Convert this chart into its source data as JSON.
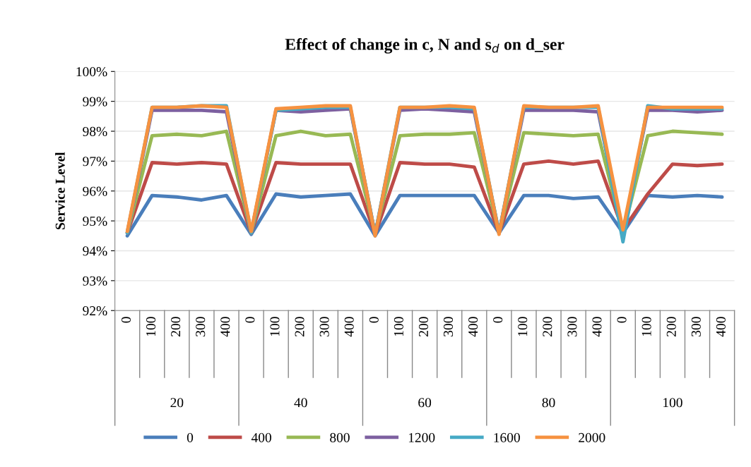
{
  "chart_data": {
    "type": "line",
    "title": "Effect of change in c, N and s$_{d}$ on d_ser",
    "ylabel": "Service Level",
    "categories": [
      "0",
      "100",
      "200",
      "300",
      "400",
      "0",
      "100",
      "200",
      "300",
      "400",
      "0",
      "100",
      "200",
      "300",
      "400",
      "0",
      "100",
      "200",
      "300",
      "400",
      "0",
      "100",
      "200",
      "300",
      "400"
    ],
    "annotations": [
      "20",
      "40",
      "60",
      "80",
      "100"
    ],
    "series": [
      {
        "name": "0",
        "color": "#4a7ebb",
        "values": [
          94.5,
          95.85,
          95.8,
          95.7,
          95.85,
          94.55,
          95.9,
          95.8,
          95.85,
          95.9,
          94.5,
          95.85,
          95.85,
          95.85,
          95.85,
          94.6,
          95.85,
          95.85,
          95.75,
          95.8,
          94.6,
          95.85,
          95.8,
          95.85,
          95.8
        ]
      },
      {
        "name": "400",
        "color": "#be4b48",
        "values": [
          94.6,
          96.95,
          96.9,
          96.95,
          96.9,
          94.6,
          96.95,
          96.9,
          96.9,
          96.9,
          94.55,
          96.95,
          96.9,
          96.9,
          96.8,
          94.6,
          96.9,
          97.0,
          96.9,
          97.0,
          94.7,
          95.9,
          96.9,
          96.85,
          96.9
        ]
      },
      {
        "name": "800",
        "color": "#98b954",
        "values": [
          94.6,
          97.85,
          97.9,
          97.85,
          98.0,
          94.6,
          97.85,
          98.0,
          97.85,
          97.9,
          94.6,
          97.85,
          97.9,
          97.9,
          97.95,
          94.6,
          97.95,
          97.9,
          97.85,
          97.9,
          94.6,
          97.85,
          98.0,
          97.95,
          97.9
        ]
      },
      {
        "name": "1200",
        "color": "#7d60a0",
        "values": [
          94.6,
          98.7,
          98.7,
          98.7,
          98.65,
          94.6,
          98.7,
          98.65,
          98.7,
          98.75,
          94.55,
          98.7,
          98.75,
          98.7,
          98.65,
          94.6,
          98.7,
          98.7,
          98.7,
          98.65,
          94.6,
          98.7,
          98.7,
          98.65,
          98.7
        ]
      },
      {
        "name": "1600",
        "color": "#46aac5",
        "values": [
          94.6,
          98.8,
          98.8,
          98.85,
          98.85,
          94.6,
          98.7,
          98.75,
          98.8,
          98.8,
          94.55,
          98.8,
          98.8,
          98.8,
          98.75,
          94.6,
          98.8,
          98.8,
          98.8,
          98.8,
          94.3,
          98.85,
          98.75,
          98.75,
          98.75
        ]
      },
      {
        "name": "2000",
        "color": "#f69240",
        "values": [
          94.65,
          98.8,
          98.8,
          98.85,
          98.8,
          94.65,
          98.75,
          98.8,
          98.85,
          98.85,
          94.5,
          98.8,
          98.8,
          98.85,
          98.8,
          94.55,
          98.85,
          98.8,
          98.8,
          98.85,
          94.7,
          98.8,
          98.8,
          98.8,
          98.8
        ]
      }
    ],
    "ylim": [
      92,
      100
    ],
    "yticks": [
      {
        "value": 92,
        "label": "92%"
      },
      {
        "value": 93,
        "label": "93%"
      },
      {
        "value": 94,
        "label": "94%"
      },
      {
        "value": 95,
        "label": "95%"
      },
      {
        "value": 96,
        "label": "96%"
      },
      {
        "value": 97,
        "label": "97%"
      },
      {
        "value": 98,
        "label": "98%"
      },
      {
        "value": 99,
        "label": "99%"
      },
      {
        "value": 100,
        "label": "100%"
      }
    ],
    "grid": "y",
    "legend": "bottom",
    "marker": "none",
    "line_style": "solid"
  }
}
